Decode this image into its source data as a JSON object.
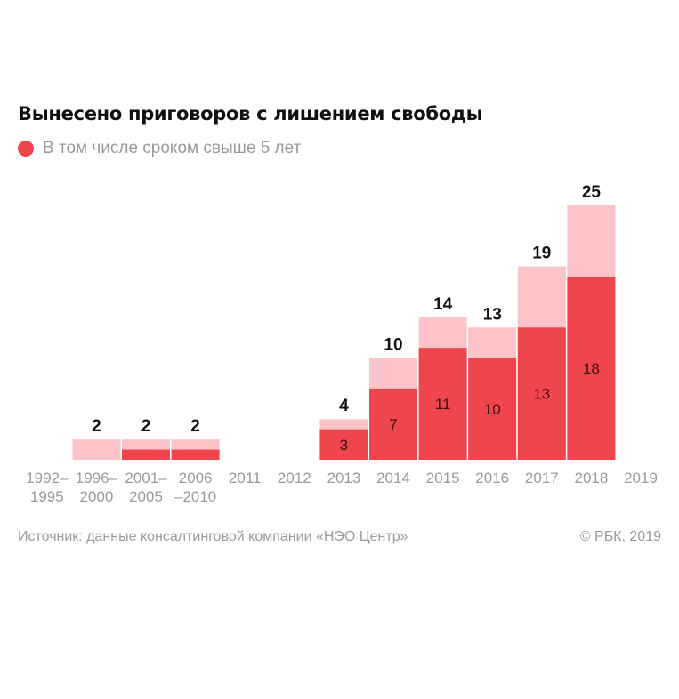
{
  "title": "Вынесено приговоров с лишением свободы",
  "legend": {
    "label": "В том числе сроком свыше 5 лет"
  },
  "colors": {
    "total": "#fcc4c8",
    "over5": "#f0454d",
    "grid": "#d8d8d8",
    "text_muted": "#9a9a9a",
    "text_dark": "#111111"
  },
  "footer": {
    "source": "Источник: данные консалтинговой компании «НЭО Центр»",
    "copyright": "© РБК, 2019"
  },
  "chart_data": {
    "type": "bar",
    "stacked": true,
    "categories": [
      [
        "1992–",
        "1995"
      ],
      [
        "1996–",
        "2000"
      ],
      [
        "2001–",
        "2005"
      ],
      [
        "2006",
        "–2010"
      ],
      [
        "2011"
      ],
      [
        "2012"
      ],
      [
        "2013"
      ],
      [
        "2014"
      ],
      [
        "2015"
      ],
      [
        "2016"
      ],
      [
        "2017"
      ],
      [
        "2018"
      ],
      [
        "2019"
      ]
    ],
    "totals": [
      0,
      2,
      2,
      2,
      0,
      0,
      4,
      10,
      14,
      13,
      19,
      25,
      0
    ],
    "over5": [
      0,
      0,
      1,
      1,
      0,
      0,
      3,
      7,
      11,
      10,
      13,
      18,
      0
    ],
    "total_labels": [
      "",
      "2",
      "2",
      "2",
      "",
      "",
      "4",
      "10",
      "14",
      "13",
      "19",
      "25",
      ""
    ],
    "over5_labels": [
      "",
      "",
      "",
      "",
      "",
      "",
      "3",
      "7",
      "11",
      "10",
      "13",
      "18",
      ""
    ],
    "ylim": [
      0,
      25
    ]
  }
}
